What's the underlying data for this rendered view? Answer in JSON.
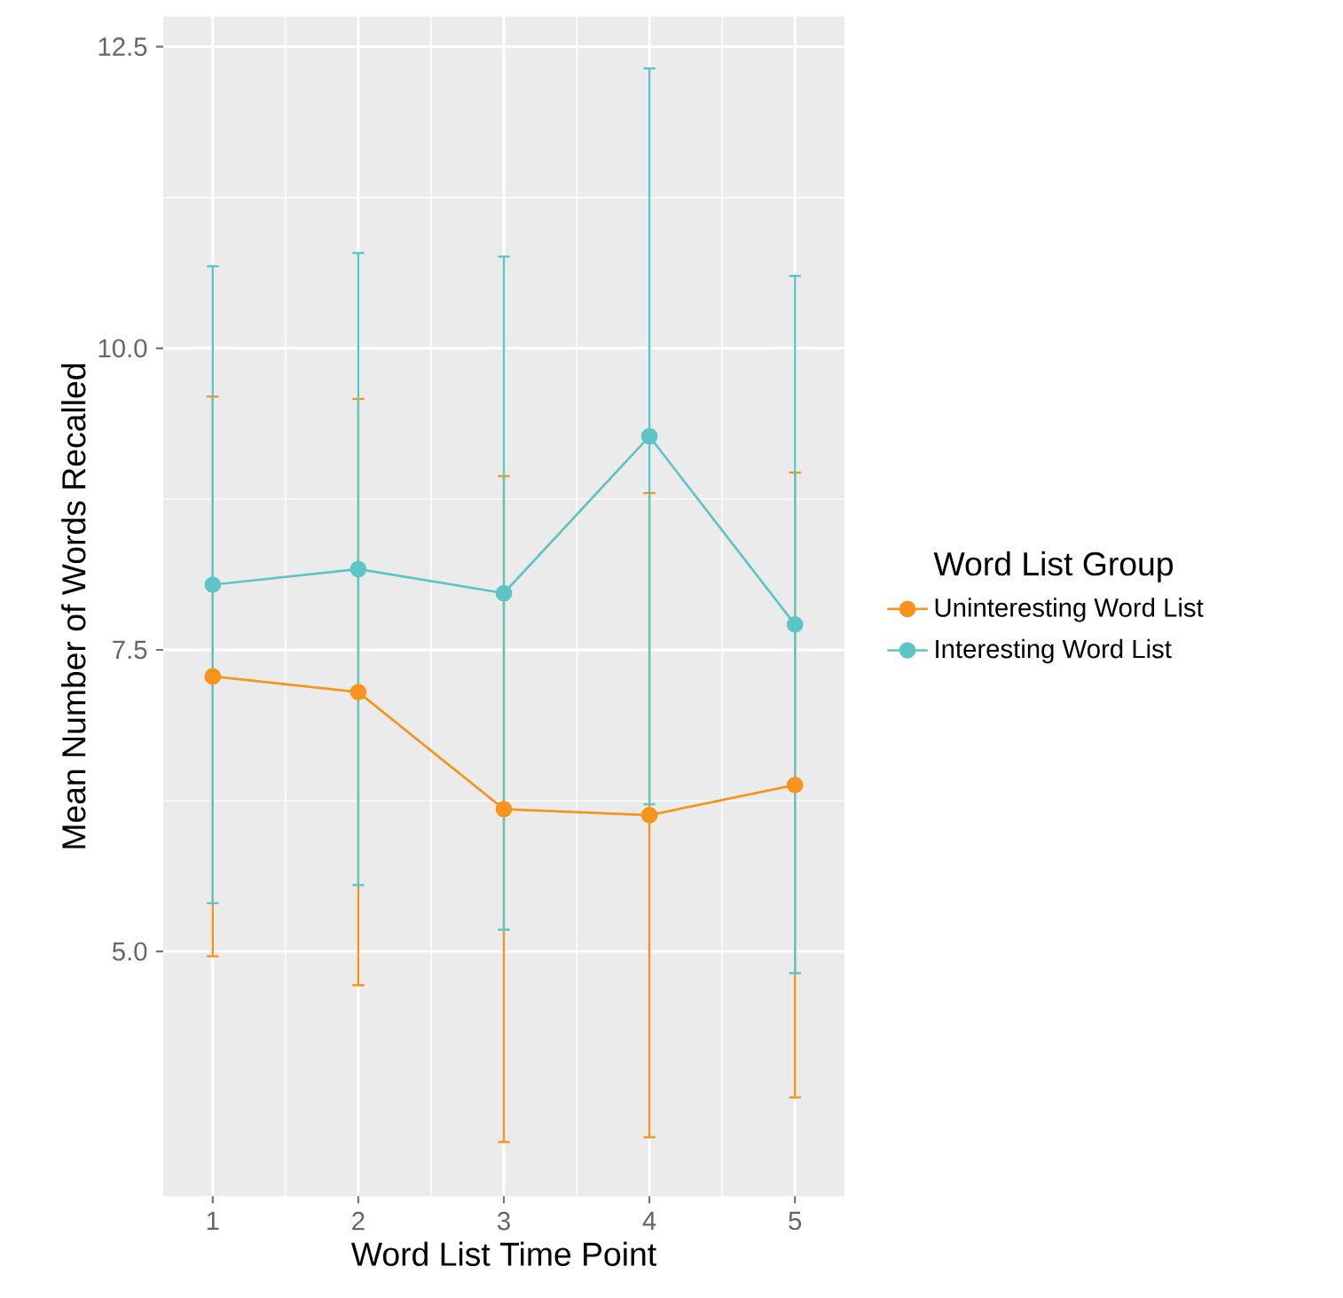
{
  "chart_data": {
    "type": "line",
    "xlabel": "Word List Time Point",
    "ylabel": "Mean Number of Words Recalled",
    "legend_title": "Word List Group",
    "categories": [
      "1",
      "2",
      "3",
      "4",
      "5"
    ],
    "series": [
      {
        "name": "Uninteresting Word List",
        "color": "#f7941d",
        "values": [
          7.28,
          7.15,
          6.18,
          6.13,
          6.38
        ],
        "errors": [
          2.32,
          2.43,
          2.76,
          2.67,
          2.59
        ]
      },
      {
        "name": "Interesting Word List",
        "color": "#5ec5c6",
        "values": [
          8.04,
          8.17,
          7.97,
          9.27,
          7.71
        ],
        "errors": [
          2.64,
          2.62,
          2.79,
          3.05,
          2.89
        ]
      }
    ],
    "ylim": [
      2.97,
      12.75
    ],
    "yticks": [
      {
        "value": 5,
        "label": "5.0"
      },
      {
        "value": 7.5,
        "label": "7.5"
      },
      {
        "value": 10,
        "label": "10.0"
      },
      {
        "value": 12.5,
        "label": "12.5"
      }
    ],
    "grid": true,
    "legend": "right",
    "marker": "circle"
  }
}
